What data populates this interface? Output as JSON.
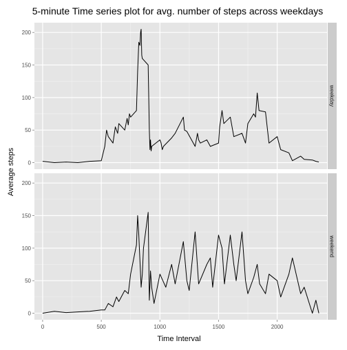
{
  "chart_data": {
    "type": "line",
    "title": "5-minute Time series plot for avg. number of steps across weekdays",
    "xlabel": "Time Interval",
    "ylabel": "Average steps",
    "xlim": [
      -70,
      2425
    ],
    "ylim": [
      -10,
      215
    ],
    "x_ticks": [
      0,
      500,
      1000,
      1500,
      2000
    ],
    "y_ticks": [
      0,
      50,
      100,
      150,
      200
    ],
    "grid": true,
    "legend": "none",
    "colors": {
      "panel_background": "#e5e5e5",
      "grid_major": "#ffffff",
      "grid_minor": "#f2f2f2",
      "strip_background": "#cccccc",
      "line": "#000000"
    },
    "panels": [
      {
        "strip_label": "weekday",
        "series": [
          {
            "x": [
              0,
              100,
              200,
              300,
              400,
              500,
              530,
              545,
              560,
              600,
              620,
              640,
              650,
              700,
              720,
              730,
              740,
              750,
              800,
              810,
              820,
              830,
              835,
              840,
              845,
              850,
              900,
              910,
              915,
              920,
              925,
              930,
              1000,
              1010,
              1020,
              1030,
              1100,
              1130,
              1200,
              1210,
              1230,
              1300,
              1320,
              1330,
              1345,
              1400,
              1430,
              1500,
              1510,
              1530,
              1545,
              1600,
              1630,
              1700,
              1730,
              1750,
              1800,
              1815,
              1830,
              1845,
              1900,
              1930,
              2000,
              2030,
              2100,
              2130,
              2200,
              2230,
              2300,
              2330,
              2355
            ],
            "y": [
              2,
              0,
              1,
              0,
              2,
              3,
              25,
              50,
              40,
              30,
              55,
              45,
              60,
              50,
              68,
              58,
              75,
              70,
              80,
              140,
              185,
              180,
              200,
              205,
              165,
              160,
              150,
              50,
              20,
              35,
              18,
              25,
              35,
              30,
              20,
              25,
              38,
              45,
              70,
              50,
              48,
              25,
              45,
              35,
              30,
              35,
              25,
              30,
              55,
              80,
              60,
              70,
              40,
              45,
              30,
              60,
              75,
              70,
              107,
              80,
              78,
              30,
              40,
              20,
              15,
              3,
              10,
              5,
              4,
              2,
              1
            ]
          }
        ]
      },
      {
        "strip_label": "weekend",
        "series": [
          {
            "x": [
              0,
              100,
              200,
              300,
              400,
              500,
              530,
              560,
              600,
              630,
              650,
              700,
              730,
              750,
              800,
              810,
              820,
              830,
              840,
              850,
              860,
              900,
              910,
              920,
              930,
              950,
              1000,
              1050,
              1100,
              1130,
              1200,
              1230,
              1250,
              1300,
              1330,
              1400,
              1430,
              1450,
              1500,
              1530,
              1550,
              1600,
              1630,
              1650,
              1700,
              1730,
              1750,
              1800,
              1830,
              1850,
              1900,
              1930,
              2000,
              2030,
              2100,
              2130,
              2200,
              2230,
              2300,
              2330,
              2355
            ],
            "y": [
              0,
              3,
              1,
              2,
              3,
              5,
              5,
              15,
              10,
              25,
              18,
              35,
              30,
              60,
              105,
              150,
              120,
              80,
              40,
              60,
              100,
              155,
              20,
              65,
              40,
              15,
              60,
              40,
              75,
              45,
              110,
              50,
              35,
              125,
              45,
              75,
              85,
              40,
              120,
              100,
              45,
              120,
              75,
              50,
              125,
              50,
              30,
              55,
              75,
              45,
              30,
              60,
              50,
              25,
              60,
              85,
              30,
              40,
              0,
              20,
              0
            ]
          }
        ]
      }
    ]
  }
}
